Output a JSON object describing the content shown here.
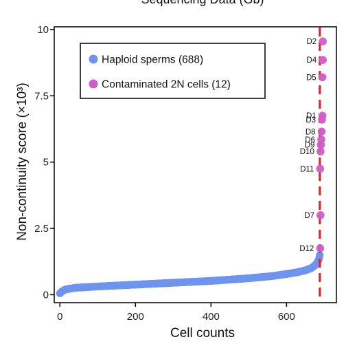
{
  "chart_data": {
    "type": "scatter",
    "title": "Sequencing Data (Gb)",
    "xlabel": "Cell counts",
    "ylabel": "Non-continuity score (×10³)",
    "xlim": [
      -15,
      732
    ],
    "ylim": [
      -0.3,
      10.1
    ],
    "x_ticks": [
      0,
      200,
      400,
      600
    ],
    "x_tick_labels": [
      "0",
      "200",
      "400",
      "600"
    ],
    "y_ticks": [
      0,
      2.5,
      5,
      7.5,
      10
    ],
    "y_tick_labels": [
      "0",
      "2.5",
      "5",
      "7.5",
      "10"
    ],
    "threshold_line": {
      "x": 688,
      "style": "dashed",
      "color": "#e02020"
    },
    "legend": {
      "position": "top-left"
    },
    "series": [
      {
        "name": "Haploid sperms (688)",
        "color": "#6e94ee",
        "count": 688,
        "curve": [
          [
            0,
            0.05
          ],
          [
            5,
            0.12
          ],
          [
            15,
            0.2
          ],
          [
            40,
            0.26
          ],
          [
            100,
            0.31
          ],
          [
            200,
            0.38
          ],
          [
            300,
            0.45
          ],
          [
            400,
            0.52
          ],
          [
            500,
            0.62
          ],
          [
            560,
            0.7
          ],
          [
            600,
            0.78
          ],
          [
            630,
            0.85
          ],
          [
            650,
            0.92
          ],
          [
            665,
            1.0
          ],
          [
            675,
            1.1
          ],
          [
            682,
            1.22
          ],
          [
            686,
            1.35
          ],
          [
            688,
            1.5
          ]
        ]
      },
      {
        "name": "Contaminated 2N cells (12)",
        "color": "#cc5cc8",
        "points": [
          {
            "label": "D2",
            "x": 696,
            "y": 9.55
          },
          {
            "label": "D4",
            "x": 696,
            "y": 8.85
          },
          {
            "label": "D5",
            "x": 695,
            "y": 8.2
          },
          {
            "label": "D1",
            "x": 695,
            "y": 6.75
          },
          {
            "label": "D3",
            "x": 694,
            "y": 6.6
          },
          {
            "label": "D8",
            "x": 693,
            "y": 6.15
          },
          {
            "label": "D6",
            "x": 692,
            "y": 5.85
          },
          {
            "label": "D9",
            "x": 691,
            "y": 5.65
          },
          {
            "label": "D10",
            "x": 690,
            "y": 5.4
          },
          {
            "label": "D11",
            "x": 689,
            "y": 4.75
          },
          {
            "label": "D7",
            "x": 690,
            "y": 3.0
          },
          {
            "label": "D12",
            "x": 689,
            "y": 1.75
          }
        ]
      }
    ]
  }
}
